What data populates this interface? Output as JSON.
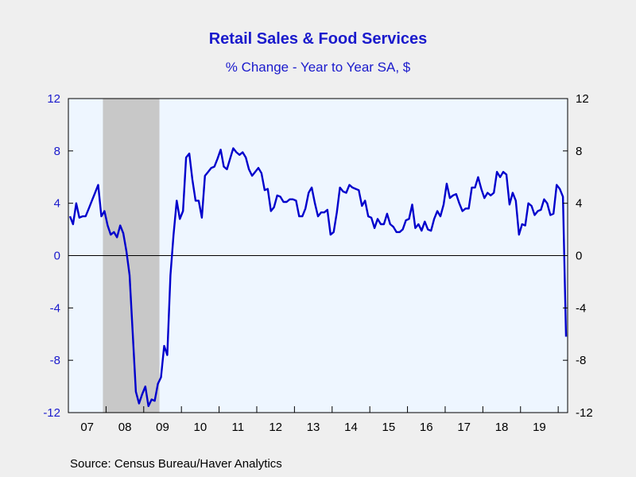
{
  "title": "Retail Sales & Food Services",
  "subtitle": "% Change - Year to Year    SA, $",
  "source": "Source:  Census Bureau/Haver Analytics",
  "colors": {
    "line": "#0000cc",
    "plot_bg": "#eef6ff",
    "recession": "#c8c8c8",
    "title": "#1a1acc"
  },
  "chart_data": {
    "type": "line",
    "title": "Retail Sales & Food Services",
    "subtitle": "% Change - Year to Year    SA, $",
    "xlabel": "",
    "ylabel": "",
    "ylim": [
      -12,
      12
    ],
    "yticks": [
      12,
      8,
      4,
      0,
      -4,
      -8,
      -12
    ],
    "xlim": [
      "2007-01",
      "2020-04"
    ],
    "xtick_labels": [
      "07",
      "08",
      "09",
      "10",
      "11",
      "12",
      "13",
      "14",
      "15",
      "16",
      "17",
      "18",
      "19"
    ],
    "grid": false,
    "legend": "none",
    "recession_band": [
      "2007-12",
      "2009-06"
    ],
    "series": [
      {
        "x": [
          "2007-01",
          "2007-02",
          "2007-03",
          "2007-04",
          "2007-05",
          "2007-06",
          "2007-07",
          "2007-08",
          "2007-09",
          "2007-10",
          "2007-11",
          "2007-12",
          "2008-01",
          "2008-02",
          "2008-03",
          "2008-04",
          "2008-05",
          "2008-06",
          "2008-07",
          "2008-08",
          "2008-09",
          "2008-10",
          "2008-11",
          "2008-12",
          "2009-01",
          "2009-02",
          "2009-03",
          "2009-04",
          "2009-05",
          "2009-06",
          "2009-07",
          "2009-08",
          "2009-09",
          "2009-10",
          "2009-11",
          "2009-12",
          "2010-01",
          "2010-02",
          "2010-03",
          "2010-04",
          "2010-05",
          "2010-06",
          "2010-07",
          "2010-08",
          "2010-09",
          "2010-10",
          "2010-11",
          "2010-12",
          "2011-01",
          "2011-02",
          "2011-03",
          "2011-04",
          "2011-05",
          "2011-06",
          "2011-07",
          "2011-08",
          "2011-09",
          "2011-10",
          "2011-11",
          "2011-12",
          "2012-01",
          "2012-02",
          "2012-03",
          "2012-04",
          "2012-05",
          "2012-06",
          "2012-07",
          "2012-08",
          "2012-09",
          "2012-10",
          "2012-11",
          "2012-12",
          "2013-01",
          "2013-02",
          "2013-03",
          "2013-04",
          "2013-05",
          "2013-06",
          "2013-07",
          "2013-08",
          "2013-09",
          "2013-10",
          "2013-11",
          "2013-12",
          "2014-01",
          "2014-02",
          "2014-03",
          "2014-04",
          "2014-05",
          "2014-06",
          "2014-07",
          "2014-08",
          "2014-09",
          "2014-10",
          "2014-11",
          "2014-12",
          "2015-01",
          "2015-02",
          "2015-03",
          "2015-04",
          "2015-05",
          "2015-06",
          "2015-07",
          "2015-08",
          "2015-09",
          "2015-10",
          "2015-11",
          "2015-12",
          "2016-01",
          "2016-02",
          "2016-03",
          "2016-04",
          "2016-05",
          "2016-06",
          "2016-07",
          "2016-08",
          "2016-09",
          "2016-10",
          "2016-11",
          "2016-12",
          "2017-01",
          "2017-02",
          "2017-03",
          "2017-04",
          "2017-05",
          "2017-06",
          "2017-07",
          "2017-08",
          "2017-09",
          "2017-10",
          "2017-11",
          "2017-12",
          "2018-01",
          "2018-02",
          "2018-03",
          "2018-04",
          "2018-05",
          "2018-06",
          "2018-07",
          "2018-08",
          "2018-09",
          "2018-10",
          "2018-11",
          "2018-12",
          "2019-01",
          "2019-02",
          "2019-03",
          "2019-04",
          "2019-05",
          "2019-06",
          "2019-07",
          "2019-08",
          "2019-09",
          "2019-10",
          "2019-11",
          "2019-12",
          "2020-01",
          "2020-02",
          "2020-03"
        ],
        "values": [
          3.0,
          2.4,
          4.0,
          2.9,
          3.0,
          3.0,
          3.6,
          4.2,
          4.8,
          5.4,
          3.0,
          3.4,
          2.3,
          1.6,
          1.8,
          1.4,
          2.3,
          1.7,
          0.3,
          -1.5,
          -6.0,
          -10.4,
          -11.3,
          -10.6,
          -10.0,
          -11.5,
          -11.0,
          -11.1,
          -9.8,
          -9.3,
          -6.9,
          -7.6,
          -1.5,
          1.6,
          4.2,
          2.8,
          3.4,
          7.5,
          7.8,
          5.8,
          4.2,
          4.2,
          2.9,
          6.1,
          6.4,
          6.7,
          6.8,
          7.4,
          8.1,
          6.8,
          6.6,
          7.4,
          8.2,
          7.9,
          7.7,
          7.9,
          7.5,
          6.6,
          6.1,
          6.4,
          6.7,
          6.3,
          5.0,
          5.1,
          3.4,
          3.7,
          4.6,
          4.5,
          4.1,
          4.1,
          4.3,
          4.3,
          4.2,
          3.0,
          3.0,
          3.6,
          4.8,
          5.2,
          4.0,
          3.0,
          3.3,
          3.3,
          3.5,
          1.6,
          1.8,
          3.3,
          5.2,
          4.9,
          4.8,
          5.4,
          5.2,
          5.1,
          5.0,
          3.8,
          4.2,
          3.0,
          2.9,
          2.1,
          2.8,
          2.4,
          2.4,
          3.2,
          2.4,
          2.2,
          1.8,
          1.8,
          2.0,
          2.7,
          2.8,
          3.9,
          2.1,
          2.4,
          1.9,
          2.6,
          2.0,
          1.9,
          2.8,
          3.4,
          3.0,
          3.9,
          5.5,
          4.4,
          4.6,
          4.7,
          4.0,
          3.4,
          3.6,
          3.6,
          5.2,
          5.2,
          6.0,
          5.1,
          4.4,
          4.8,
          4.6,
          4.8,
          6.4,
          6.0,
          6.4,
          6.2,
          3.9,
          4.8,
          4.2,
          1.6,
          2.4,
          2.3,
          4.0,
          3.8,
          3.1,
          3.4,
          3.5,
          4.3,
          4.0,
          3.1,
          3.2,
          5.4,
          5.1,
          4.5,
          -6.2
        ]
      }
    ]
  }
}
